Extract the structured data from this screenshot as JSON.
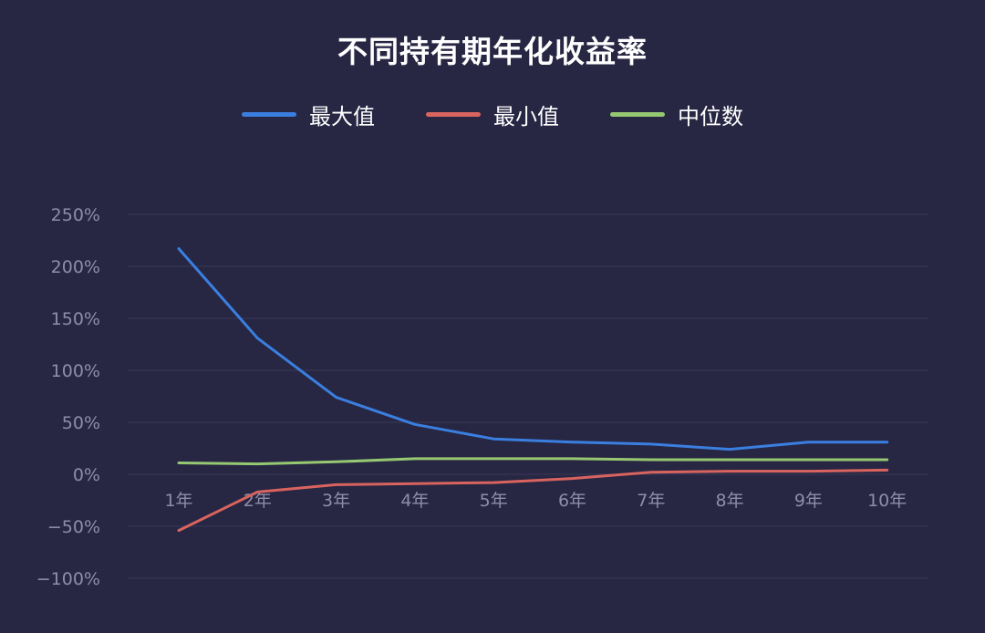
{
  "chart_data": {
    "type": "line",
    "title": "不同持有期年化收益率",
    "xlabel": "",
    "ylabel": "",
    "categories": [
      "1年",
      "2年",
      "3年",
      "4年",
      "5年",
      "6年",
      "7年",
      "8年",
      "9年",
      "10年"
    ],
    "y_ticks": [
      "250%",
      "200%",
      "150%",
      "100%",
      "50%",
      "0%",
      "−50%",
      "−100%"
    ],
    "ylim": [
      -100,
      250
    ],
    "y_unit": "%",
    "grid": true,
    "legend_position": "top",
    "series": [
      {
        "name": "最大值",
        "color": "#3a7fe0",
        "values": [
          217,
          131,
          74,
          48,
          34,
          31,
          29,
          24,
          31,
          31
        ]
      },
      {
        "name": "最小值",
        "color": "#d9645f",
        "values": [
          -54,
          -17,
          -10,
          -9,
          -8,
          -4,
          2,
          3,
          3,
          4
        ]
      },
      {
        "name": "中位数",
        "color": "#96c872",
        "values": [
          11,
          10,
          12,
          15,
          15,
          15,
          14,
          14,
          14,
          14
        ]
      }
    ]
  }
}
